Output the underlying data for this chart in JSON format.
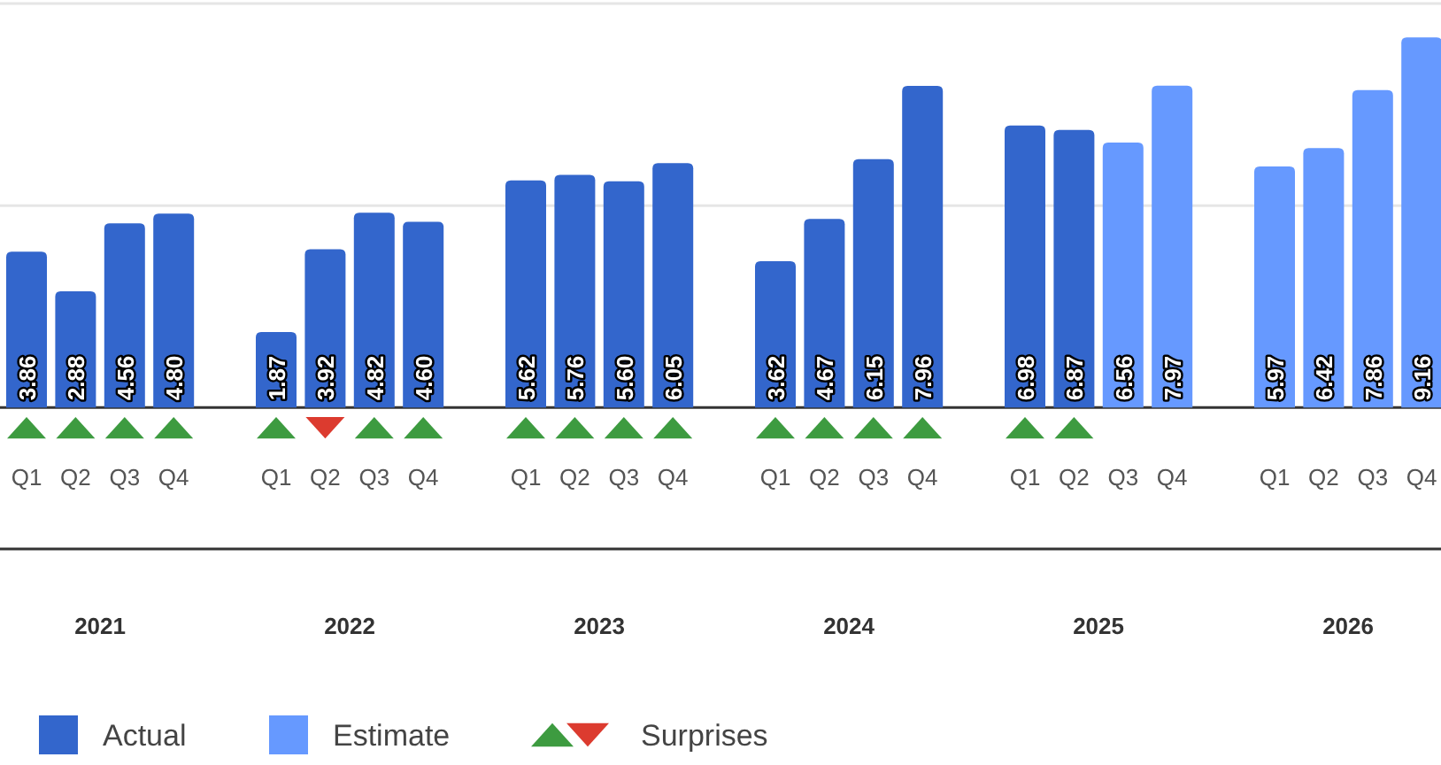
{
  "chart_data": {
    "type": "bar",
    "categories": [
      "Q1",
      "Q2",
      "Q3",
      "Q4",
      "Q1",
      "Q2",
      "Q3",
      "Q4",
      "Q1",
      "Q2",
      "Q3",
      "Q4",
      "Q1",
      "Q2",
      "Q3",
      "Q4",
      "Q1",
      "Q2",
      "Q3",
      "Q4",
      "Q1",
      "Q2",
      "Q3",
      "Q4"
    ],
    "series": [
      {
        "name": "Actual",
        "color": "#3366cc",
        "values": [
          3.86,
          2.88,
          4.56,
          4.8,
          1.87,
          3.92,
          4.82,
          4.6,
          5.62,
          5.76,
          5.6,
          6.05,
          3.62,
          4.67,
          6.15,
          7.96,
          6.98,
          6.87,
          null,
          null,
          null,
          null,
          null,
          null
        ],
        "value_labels": [
          "3.86",
          "2.88",
          "4.56",
          "4.80",
          "1.87",
          "3.92",
          "4.82",
          "4.60",
          "5.62",
          "5.76",
          "5.60",
          "6.05",
          "3.62",
          "4.67",
          "6.15",
          "7.96",
          "6.98",
          "6.87",
          null,
          null,
          null,
          null,
          null,
          null
        ]
      },
      {
        "name": "Estimate",
        "color": "#6699ff",
        "values": [
          null,
          null,
          null,
          null,
          null,
          null,
          null,
          null,
          null,
          null,
          null,
          null,
          null,
          null,
          null,
          null,
          null,
          null,
          6.56,
          7.97,
          5.97,
          6.42,
          7.86,
          9.16
        ],
        "value_labels": [
          null,
          null,
          null,
          null,
          null,
          null,
          null,
          null,
          null,
          null,
          null,
          null,
          null,
          null,
          null,
          null,
          null,
          null,
          "6.56",
          "7.97",
          "5.97",
          "6.42",
          "7.86",
          "9.16"
        ]
      },
      {
        "name": "Surprises",
        "type": "scatter",
        "marker": "triangle",
        "color": "#3d9b40",
        "values": [
          -0.5,
          -0.5,
          -0.5,
          -0.5,
          -0.5,
          null,
          -0.5,
          -0.5,
          -0.5,
          -0.5,
          -0.5,
          -0.5,
          -0.5,
          -0.5,
          -0.5,
          -0.5,
          -0.5,
          -0.5,
          null,
          null,
          null,
          null,
          null,
          null
        ]
      },
      {
        "type": "scatter",
        "marker": "triangle-down",
        "color": "#dc3b2f",
        "values": [
          null,
          null,
          null,
          null,
          null,
          -0.5,
          null,
          null,
          null,
          null,
          null,
          null,
          null,
          null,
          null,
          null,
          null,
          null,
          null,
          null,
          null,
          null,
          null,
          null
        ]
      }
    ],
    "annotations": [
      "2021",
      "2022",
      "2023",
      "2024",
      "2025",
      "2026"
    ],
    "ylim": [
      -3.5,
      10
    ],
    "yticks": [
      {
        "value": 0,
        "label": null
      },
      {
        "value": 5,
        "label": null
      },
      {
        "value": 10,
        "label": null
      }
    ],
    "grid": "y",
    "tick_labels": "x",
    "legend": "bottom"
  }
}
